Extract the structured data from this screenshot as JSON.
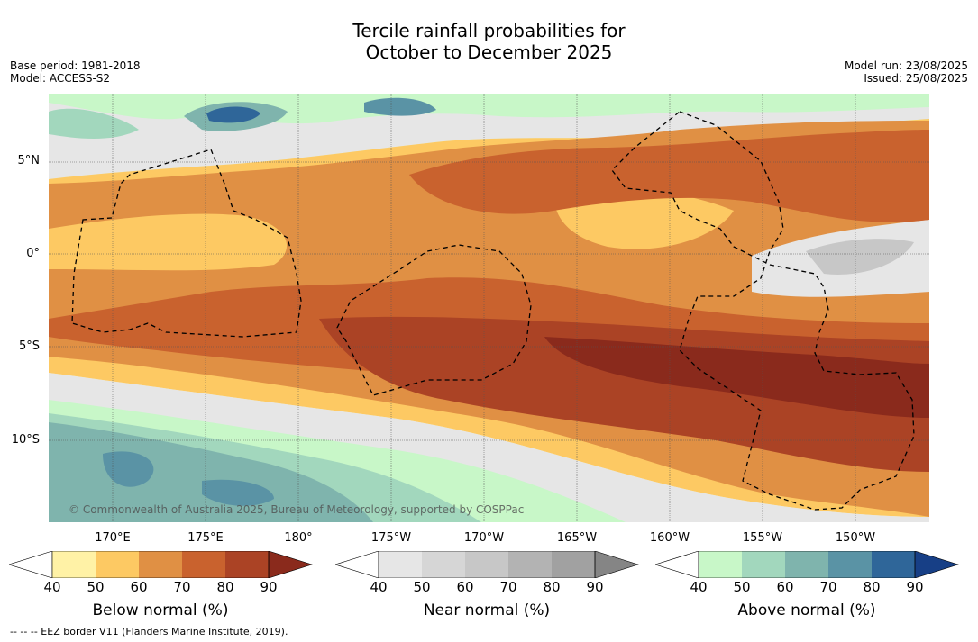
{
  "title_line1": "Tercile rainfall probabilities for",
  "title_line2": "October to December 2025",
  "meta_left": [
    "Base period: 1981-2018",
    "Model: ACCESS-S2"
  ],
  "meta_right": [
    "Model run: 23/08/2025",
    "Issued: 25/08/2025"
  ],
  "lat_labels": [
    {
      "text": "5°N",
      "lat": 5
    },
    {
      "text": "0°",
      "lat": 0
    },
    {
      "text": "5°S",
      "lat": -5
    },
    {
      "text": "10°S",
      "lat": -10
    }
  ],
  "lon_labels": [
    {
      "text": "170°E",
      "lon": 170
    },
    {
      "text": "175°E",
      "lon": 175
    },
    {
      "text": "180°",
      "lon": 180
    },
    {
      "text": "175°W",
      "lon": 185
    },
    {
      "text": "170°W",
      "lon": 190
    },
    {
      "text": "165°W",
      "lon": 195
    },
    {
      "text": "160°W",
      "lon": 200
    },
    {
      "text": "155°W",
      "lon": 205
    },
    {
      "text": "150°W",
      "lon": 210
    }
  ],
  "map_extent": {
    "lon_min": 166.2,
    "lon_max": 213.5,
    "lat_min": -14.3,
    "lat_max": 8.5
  },
  "copyright": "© Commonwealth of Australia 2025, Bureau of Meteorology, supported by COSPPac",
  "colorbars": [
    {
      "id": "below",
      "label": "Below normal (%)",
      "ticks": [
        "40",
        "50",
        "60",
        "70",
        "80",
        "90"
      ],
      "colors": [
        "#fff2a6",
        "#fdc963",
        "#e09044",
        "#c9622e",
        "#ab4325",
        "#8a2a1c"
      ]
    },
    {
      "id": "near",
      "label": "Near normal (%)",
      "ticks": [
        "40",
        "50",
        "60",
        "70",
        "80",
        "90"
      ],
      "colors": [
        "#e6e6e6",
        "#d6d6d6",
        "#c7c7c7",
        "#b3b3b3",
        "#a1a1a1",
        "#858585"
      ]
    },
    {
      "id": "above",
      "label": "Above normal (%)",
      "ticks": [
        "40",
        "50",
        "60",
        "70",
        "80",
        "90"
      ],
      "colors": [
        "#c8f7c8",
        "#a2d7bd",
        "#7fb4ad",
        "#5a93a5",
        "#2f6699",
        "#173f86"
      ]
    }
  ],
  "footer": "--  --  -- EEZ border V11 (Flanders Marine Institute, 2019)."
}
